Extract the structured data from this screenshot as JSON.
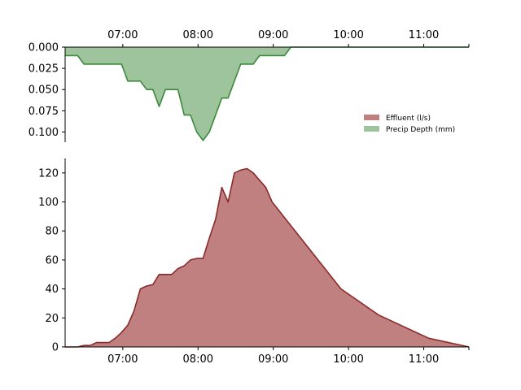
{
  "chart_data": [
    {
      "type": "area",
      "panel": "top",
      "y_inverted": true,
      "x_domain": [
        "06:14",
        "11:36"
      ],
      "ylim": [
        0.112,
        0
      ],
      "x_ticks": [
        "07:00",
        "08:00",
        "09:00",
        "10:00",
        "11:00"
      ],
      "y_ticks": [
        "0.000",
        "0.025",
        "0.050",
        "0.075",
        "0.100"
      ],
      "y_tick_values": [
        0,
        0.025,
        0.05,
        0.075,
        0.1
      ],
      "series": [
        {
          "name": "Precip Depth (mm)",
          "color": "#9dc49d",
          "line_color": "#3c8a3c",
          "x": [
            "06:14",
            "06:24",
            "06:29",
            "06:34",
            "06:59",
            "07:04",
            "07:14",
            "07:19",
            "07:24",
            "07:29",
            "07:34",
            "07:44",
            "07:49",
            "07:54",
            "07:59",
            "08:04",
            "08:09",
            "08:19",
            "08:24",
            "08:34",
            "08:44",
            "08:49",
            "09:09",
            "09:14",
            "11:36"
          ],
          "values": [
            0.01,
            0.01,
            0.02,
            0.02,
            0.02,
            0.04,
            0.04,
            0.05,
            0.05,
            0.07,
            0.05,
            0.05,
            0.08,
            0.08,
            0.1,
            0.11,
            0.1,
            0.06,
            0.06,
            0.02,
            0.02,
            0.01,
            0.01,
            0,
            0
          ]
        }
      ]
    },
    {
      "type": "area",
      "panel": "bottom",
      "x_domain": [
        "06:14",
        "11:36"
      ],
      "ylim": [
        0,
        130
      ],
      "x_ticks": [
        "07:00",
        "08:00",
        "09:00",
        "10:00",
        "11:00"
      ],
      "y_ticks": [
        "0",
        "20",
        "40",
        "60",
        "80",
        "100",
        "120"
      ],
      "y_tick_values": [
        0,
        20,
        40,
        60,
        80,
        100,
        120
      ],
      "series": [
        {
          "name": "Effluent (l/s)",
          "color": "#c08080",
          "line_color": "#8b2a2a",
          "x": [
            "06:14",
            "06:24",
            "06:29",
            "06:34",
            "06:39",
            "06:49",
            "06:54",
            "06:59",
            "07:04",
            "07:09",
            "07:14",
            "07:19",
            "07:24",
            "07:29",
            "07:34",
            "07:39",
            "07:44",
            "07:49",
            "07:54",
            "07:59",
            "08:04",
            "08:09",
            "08:14",
            "08:19",
            "08:24",
            "08:29",
            "08:34",
            "08:39",
            "08:44",
            "08:49",
            "08:54",
            "08:59",
            "09:54",
            "10:24",
            "11:04",
            "11:36"
          ],
          "values": [
            0,
            0,
            1,
            1,
            3,
            3,
            6,
            10,
            15,
            25,
            40,
            42,
            43,
            50,
            50,
            50,
            54,
            56,
            60,
            61,
            61,
            75,
            88,
            110,
            100,
            120,
            122,
            123,
            120,
            115,
            110,
            100,
            40,
            22,
            6,
            0
          ]
        }
      ]
    }
  ],
  "legend": {
    "position": "right",
    "entries": [
      {
        "label": "Effluent (l/s)",
        "color": "#c08080"
      },
      {
        "label": "Precip Depth (mm)",
        "color": "#9dc49d"
      }
    ]
  }
}
